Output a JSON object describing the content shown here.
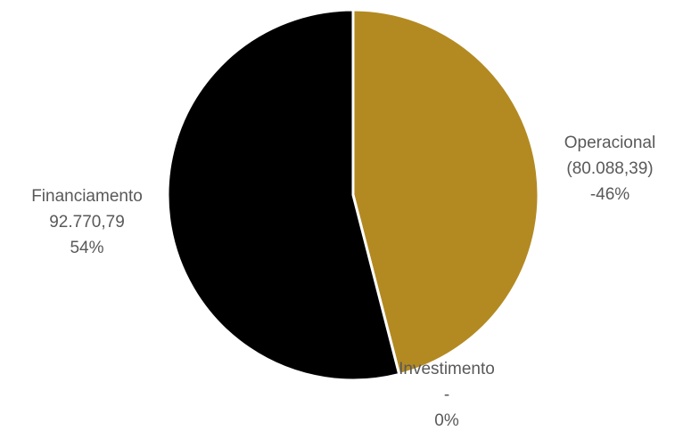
{
  "chart_data": {
    "type": "pie",
    "title": "",
    "slices": [
      {
        "label": "Operacional",
        "value_text": "(80.088,39)",
        "percent_text": "-46%",
        "value": -80088.39,
        "percent": 46,
        "color": "#B38A22"
      },
      {
        "label": "Investimento",
        "value_text": "-",
        "percent_text": "0%",
        "value": 0,
        "percent": 0,
        "color": "#000000"
      },
      {
        "label": "Financiamento",
        "value_text": "92.770,79",
        "percent_text": "54%",
        "value": 92770.79,
        "percent": 54,
        "color": "#000000"
      }
    ],
    "start_direction": "top",
    "direction": "clockwise",
    "legend": "none",
    "separator_color": "#ffffff"
  }
}
